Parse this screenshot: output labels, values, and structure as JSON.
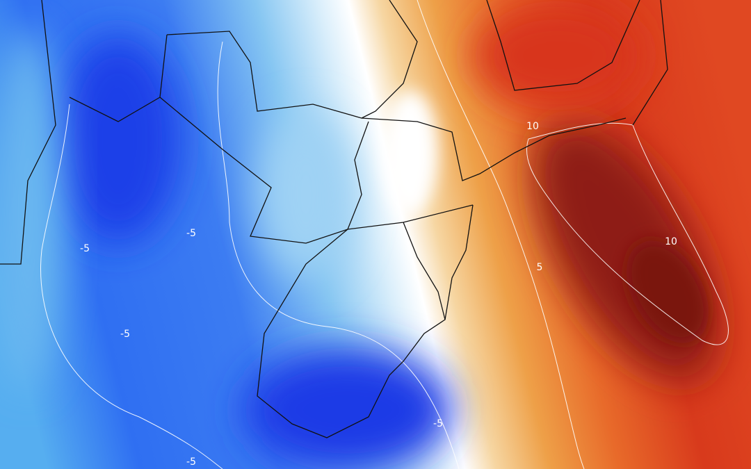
{
  "contour_labels": [
    "10",
    "10",
    "5",
    "-5",
    "-5",
    "-5",
    "-5",
    "-5"
  ]
}
